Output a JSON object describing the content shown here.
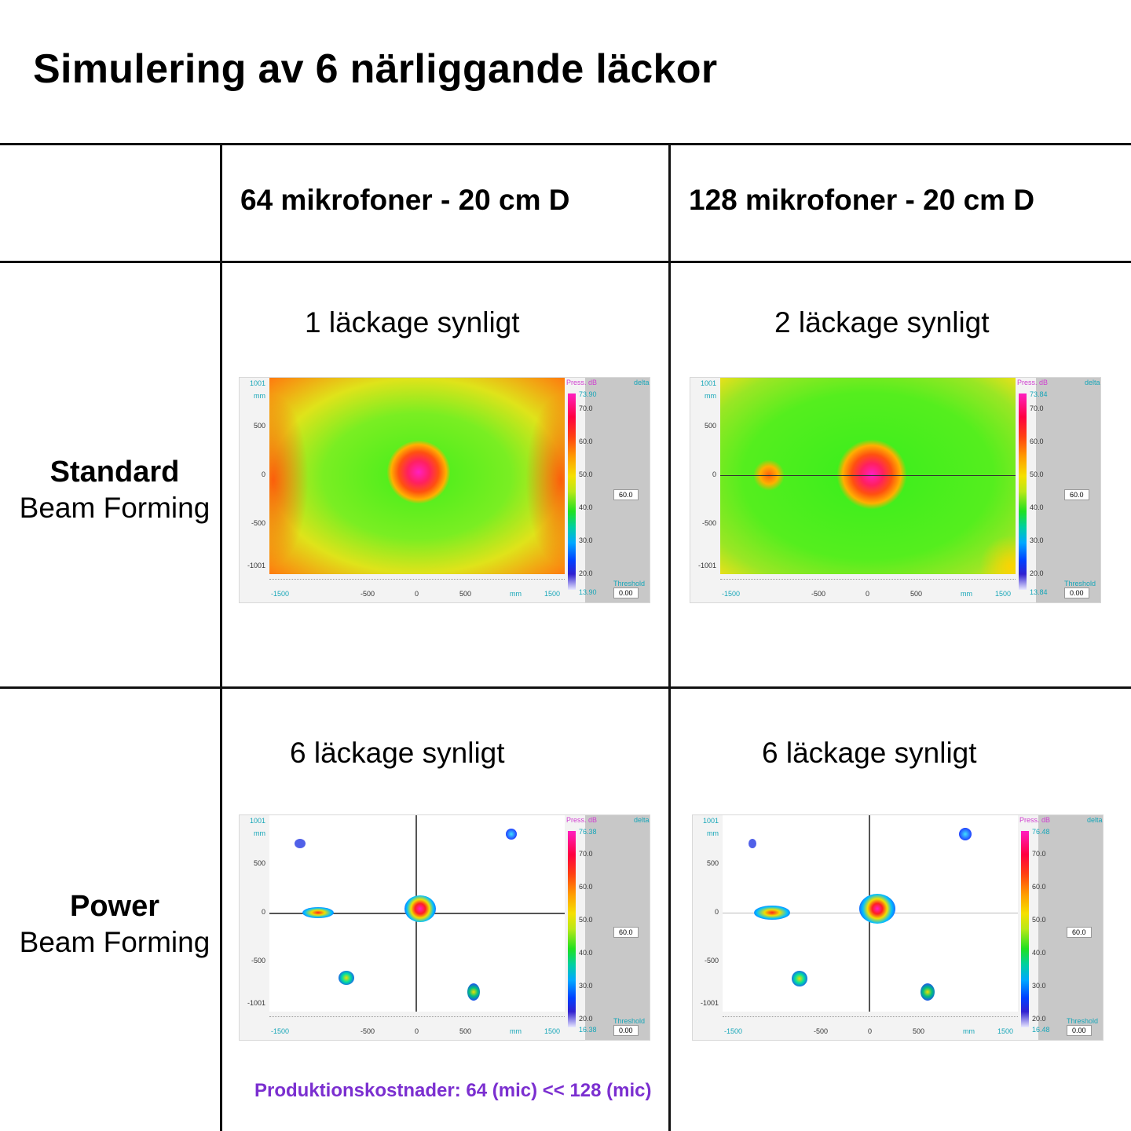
{
  "title": "Simulering av 6 närliggande läckor",
  "columns": [
    "64 mikrofoner - 20 cm D",
    "128 mikrofoner - 20 cm D"
  ],
  "rows": [
    {
      "bold": "Standard",
      "regular": "Beam Forming"
    },
    {
      "bold": "Power",
      "regular": "Beam Forming"
    }
  ],
  "captions": {
    "std_64": "1 läckage synligt",
    "std_128": "2 läckage synligt",
    "pow_64": "6 läckage synligt",
    "pow_128": "6 läckage synligt"
  },
  "plots": {
    "common": {
      "y_top": "1001",
      "y_unit": "mm",
      "y_500": "500",
      "y_0": "0",
      "y_m500": "-500",
      "y_bottom": "-1001",
      "x_left": "-1500",
      "x_m500": "-500",
      "x_0": "0",
      "x_500": "500",
      "x_unit": "mm",
      "x_right": "1500",
      "scale_title": "Press. dB",
      "delta": "delta",
      "threshold_label": "Threshold",
      "threshold_value": "0.00",
      "delta_value": "60.0",
      "ticks": [
        "70.0",
        "60.0",
        "50.0",
        "40.0",
        "30.0",
        "20.0"
      ]
    },
    "std_64": {
      "max": "73.90",
      "min": "13.90"
    },
    "std_128": {
      "max": "73.84",
      "min": "13.84"
    },
    "pow_64": {
      "max": "76.38",
      "min": "16.38"
    },
    "pow_128": {
      "max": "76.48",
      "min": "16.48"
    }
  },
  "footnote": "Produktionskostnader: 64 (mic) << 128 (mic)"
}
